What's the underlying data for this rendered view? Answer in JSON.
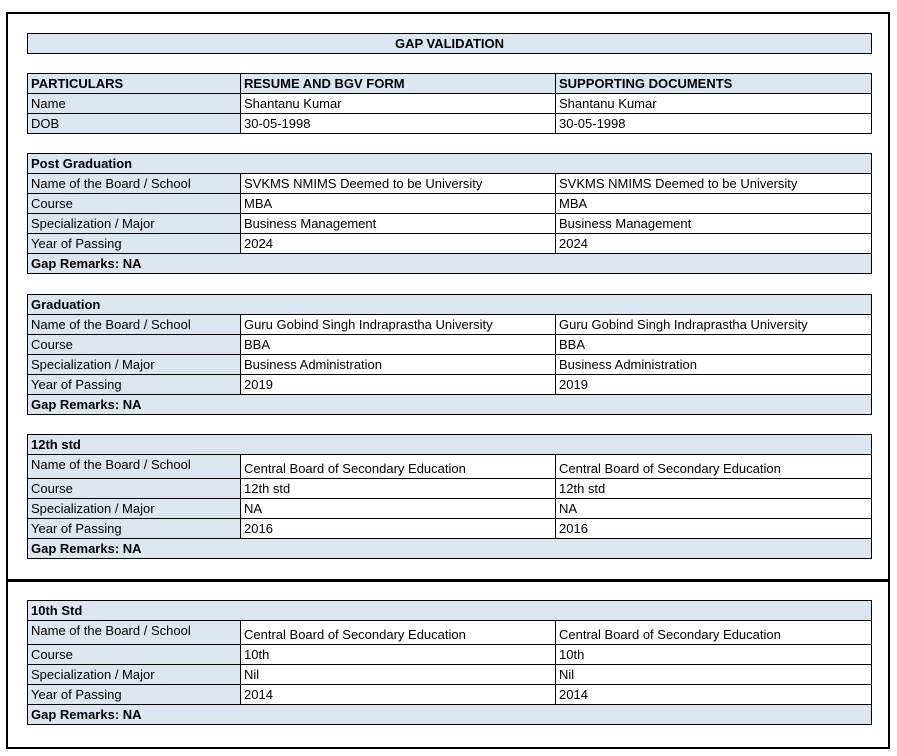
{
  "title": "GAP VALIDATION",
  "header": {
    "columns": [
      "PARTICULARS",
      "RESUME AND BGV FORM",
      "SUPPORTING DOCUMENTS"
    ],
    "rows": [
      [
        "Name",
        "Shantanu Kumar",
        "Shantanu Kumar"
      ],
      [
        "DOB",
        "30-05-1998",
        "30-05-1998"
      ]
    ]
  },
  "sections": [
    {
      "heading": "Post Graduation",
      "rows": [
        [
          "Name of the Board / School",
          "SVKMS NMIMS Deemed to be University",
          "SVKMS NMIMS Deemed to be University"
        ],
        [
          "Course",
          "MBA",
          "MBA"
        ],
        [
          "Specialization / Major",
          "Business Management",
          "Business Management"
        ],
        [
          "Year of Passing",
          "2024",
          "2024"
        ]
      ],
      "remarks": "Gap Remarks: NA"
    },
    {
      "heading": "Graduation",
      "rows": [
        [
          "Name of the Board / School",
          "Guru Gobind Singh Indraprastha University",
          "Guru Gobind Singh Indraprastha University"
        ],
        [
          "Course",
          "BBA",
          "BBA"
        ],
        [
          "Specialization / Major",
          "Business Administration",
          "Business Administration"
        ],
        [
          "Year of Passing",
          "2019",
          "2019"
        ]
      ],
      "remarks": "Gap Remarks: NA"
    },
    {
      "heading": "12th std",
      "rows": [
        [
          "Name of the Board / School",
          "Central Board of Secondary Education",
          "Central Board of Secondary Education"
        ],
        [
          "Course",
          "12th std",
          "12th std"
        ],
        [
          "Specialization / Major",
          "NA",
          "NA"
        ],
        [
          "Year of Passing",
          "2016",
          "2016"
        ]
      ],
      "remarks": "Gap Remarks: NA"
    },
    {
      "heading": "10th Std",
      "rows": [
        [
          "Name of the Board / School",
          "Central Board of Secondary Education",
          "Central Board of Secondary Education"
        ],
        [
          "Course",
          "10th",
          "10th"
        ],
        [
          "Specialization / Major",
          "Nil",
          "Nil"
        ],
        [
          "Year of Passing",
          "2014",
          "2014"
        ]
      ],
      "remarks": "Gap Remarks: NA"
    }
  ],
  "colors": {
    "header_fill": "#dce6f1",
    "border": "#000000"
  }
}
